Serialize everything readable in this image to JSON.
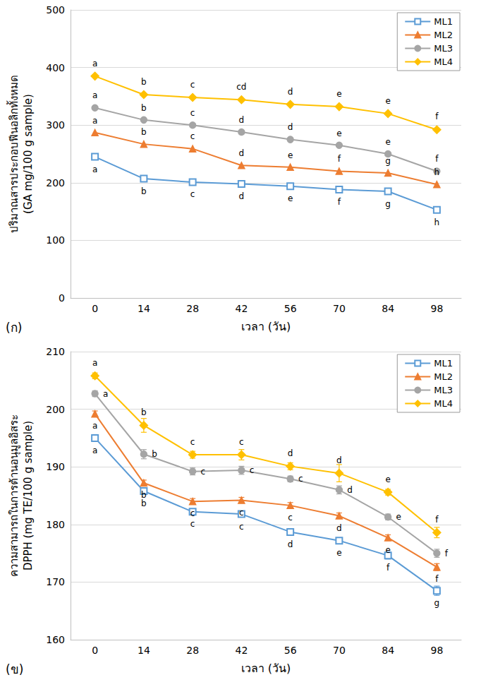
{
  "chart_data": [
    {
      "type": "line",
      "x_label": "เวลา (วัน)",
      "y_label": [
        "ปริมาณสารประกอบฟีนอลิกทั้งหมด",
        "(GA mg/100 g sample)"
      ],
      "annotations": [
        "(ก)"
      ],
      "categories": [
        "0",
        "14",
        "28",
        "42",
        "56",
        "70",
        "84",
        "98"
      ],
      "ylim": [
        0,
        500
      ],
      "yticks": [
        0,
        100,
        200,
        300,
        400,
        500
      ],
      "grid": true,
      "legend": "upper right",
      "series": [
        {
          "name": "ML1",
          "color": "#5b9bd5",
          "marker": "open_square",
          "values": [
            245,
            207,
            201,
            198,
            194,
            188,
            185,
            153
          ],
          "significance": [
            "a",
            "b",
            "c",
            "d",
            "e",
            "f",
            "g",
            "h"
          ]
        },
        {
          "name": "ML2",
          "color": "#ed7d31",
          "marker": "triangle",
          "values": [
            287,
            267,
            259,
            230,
            227,
            220,
            217,
            197
          ],
          "significance": [
            "a",
            "b",
            "c",
            "d",
            "e",
            "f",
            "g",
            "h"
          ]
        },
        {
          "name": "ML3",
          "color": "#a5a5a5",
          "marker": "circle",
          "values": [
            330,
            309,
            300,
            288,
            275,
            265,
            250,
            220
          ],
          "significance": [
            "a",
            "b",
            "c",
            "d",
            "d",
            "e",
            "e",
            "f"
          ]
        },
        {
          "name": "ML4",
          "color": "#ffc000",
          "marker": "diamond",
          "values": [
            385,
            353,
            348,
            344,
            336,
            332,
            320,
            292
          ],
          "significance": [
            "a",
            "b",
            "c",
            "cd",
            "d",
            "e",
            "e",
            "f"
          ]
        }
      ]
    },
    {
      "type": "line",
      "x_label": "เวลา (วัน)",
      "y_label": [
        "ความสามารถในการต้านอนุมูลอิสระ",
        "DPPH (mg TE/100 g sample)"
      ],
      "annotations": [
        "(ข)"
      ],
      "categories": [
        "0",
        "14",
        "28",
        "42",
        "56",
        "70",
        "84",
        "98"
      ],
      "ylim": [
        160,
        210
      ],
      "yticks": [
        160,
        170,
        180,
        190,
        200,
        210
      ],
      "grid": true,
      "legend": "upper right",
      "series": [
        {
          "name": "ML1",
          "color": "#5b9bd5",
          "marker": "open_square",
          "values": [
            195.0,
            185.8,
            182.2,
            181.8,
            178.7,
            177.2,
            174.6,
            168.5
          ],
          "errors": [
            0.6,
            0.5,
            0.5,
            0.5,
            0.5,
            0.5,
            0.6,
            0.8
          ],
          "significance": [
            "a",
            "b",
            "c",
            "c",
            "d",
            "e",
            "f",
            "g"
          ]
        },
        {
          "name": "ML2",
          "color": "#ed7d31",
          "marker": "triangle",
          "values": [
            199.2,
            187.2,
            184.0,
            184.2,
            183.3,
            181.5,
            177.7,
            172.6
          ],
          "errors": [
            0.5,
            0.5,
            0.5,
            0.5,
            0.5,
            0.5,
            0.5,
            0.6
          ],
          "significance": [
            "a",
            "b",
            "c",
            "c",
            "c",
            "d",
            "e",
            "f"
          ]
        },
        {
          "name": "ML3",
          "color": "#a5a5a5",
          "marker": "circle",
          "values": [
            202.7,
            192.2,
            189.2,
            189.4,
            187.9,
            186.0,
            181.3,
            175.0
          ],
          "errors": [
            0.5,
            0.8,
            0.6,
            0.7,
            0.5,
            0.7,
            0.5,
            0.7
          ],
          "significance": [
            "a",
            "b",
            "c",
            "c",
            "c",
            "d",
            "e",
            "f"
          ]
        },
        {
          "name": "ML4",
          "color": "#ffc000",
          "marker": "diamond",
          "values": [
            205.8,
            197.2,
            192.1,
            192.1,
            190.1,
            188.9,
            185.6,
            178.6
          ],
          "errors": [
            0.5,
            1.2,
            0.6,
            0.9,
            0.6,
            1.5,
            0.5,
            0.9
          ],
          "significance": [
            "a",
            "b",
            "c",
            "c",
            "d",
            "d",
            "e",
            "f"
          ]
        }
      ]
    }
  ]
}
